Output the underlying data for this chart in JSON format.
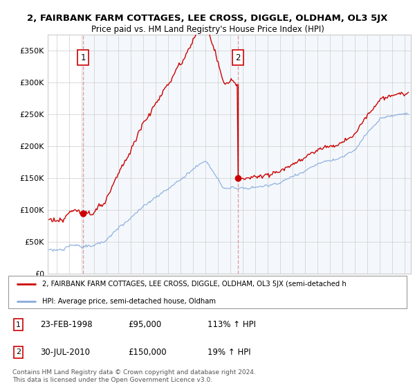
{
  "title": "2, FAIRBANK FARM COTTAGES, LEE CROSS, DIGGLE, OLDHAM, OL3 5JX",
  "subtitle": "Price paid vs. HM Land Registry's House Price Index (HPI)",
  "sale1_date": "23-FEB-1998",
  "sale1_price": 95000,
  "sale1_hpi_pct": "113% ↑ HPI",
  "sale2_date": "30-JUL-2010",
  "sale2_price": 150000,
  "sale2_hpi_pct": "19% ↑ HPI",
  "legend_line1": "2, FAIRBANK FARM COTTAGES, LEE CROSS, DIGGLE, OLDHAM, OL3 5JX (semi-detached h",
  "legend_line2": "HPI: Average price, semi-detached house, Oldham",
  "footer": "Contains HM Land Registry data © Crown copyright and database right 2024.\nThis data is licensed under the Open Government Licence v3.0.",
  "line_color_property": "#cc0000",
  "line_color_hpi": "#88aadd",
  "background_color": "#ffffff",
  "grid_color": "#cccccc",
  "ylim": [
    0,
    375000
  ],
  "xlim_start": 1995.3,
  "xlim_end": 2024.5,
  "sale1_year": 1998.14,
  "sale2_year": 2010.58
}
